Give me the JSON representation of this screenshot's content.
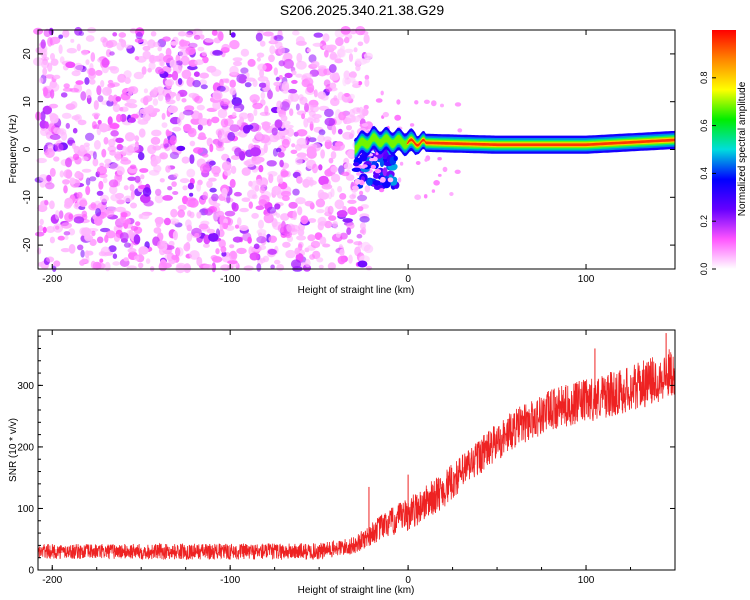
{
  "figure_title": "S206.2025.340.21.38.G29",
  "chart_data": [
    {
      "type": "heatmap",
      "title": "S206.2025.340.21.38.G29",
      "xlabel": "Height of straight line (km)",
      "ylabel": "Frequency (Hz)",
      "xlim": [
        -208,
        150
      ],
      "ylim": [
        -25,
        25
      ],
      "xticks": [
        -200,
        -100,
        0,
        100
      ],
      "yticks": [
        -20,
        -10,
        0,
        10,
        20
      ],
      "xticks_text": [
        "-200",
        "-100",
        "0",
        "100"
      ],
      "yticks_text": [
        "-20",
        "-10",
        "0",
        "10",
        "20"
      ],
      "noise_region": {
        "x_range": [
          -208,
          -30
        ],
        "freq_range": [
          -25,
          25
        ],
        "amplitude_range": [
          0.05,
          0.25
        ]
      },
      "transition_region": {
        "x_range": [
          -30,
          0
        ],
        "freq_range": [
          -8,
          2
        ],
        "amplitude_range": [
          0.2,
          0.5
        ]
      },
      "signal_band": {
        "x_range": [
          0,
          150
        ],
        "center_freq": [
          {
            "x": -30,
            "y": 0.5
          },
          {
            "x": -20,
            "y": 2
          },
          {
            "x": 0,
            "y": 1.5
          },
          {
            "x": 50,
            "y": 1
          },
          {
            "x": 100,
            "y": 1
          },
          {
            "x": 150,
            "y": 2
          }
        ],
        "peak_amplitude": 0.95
      },
      "colorbar": {
        "label": "Normalized spectral amplitude",
        "range": [
          0,
          1
        ],
        "ticks": [
          0.0,
          0.2,
          0.4,
          0.6,
          0.8
        ],
        "ticks_text": [
          "0.0",
          "0.2",
          "0.4",
          "0.6",
          "0.8"
        ],
        "colors": [
          "#ffffff",
          "#ff55ff",
          "#6600ff",
          "#0000ff",
          "#00dddd",
          "#00ee00",
          "#ffff00",
          "#ff8800",
          "#ff0000"
        ]
      }
    },
    {
      "type": "line",
      "xlabel": "Height of straight line (km)",
      "ylabel": "SNR (10 * v/v)",
      "xlim": [
        -208,
        150
      ],
      "ylim": [
        0,
        390
      ],
      "xticks": [
        -200,
        -100,
        0,
        100
      ],
      "yticks": [
        0,
        100,
        200,
        300
      ],
      "xticks_text": [
        "-200",
        "-100",
        "0",
        "100"
      ],
      "yticks_text": [
        "0",
        "100",
        "200",
        "300"
      ],
      "series": [
        {
          "name": "SNR",
          "color": "#ee2222",
          "trend": [
            {
              "x": -208,
              "y": 30
            },
            {
              "x": -50,
              "y": 30
            },
            {
              "x": -30,
              "y": 40
            },
            {
              "x": -15,
              "y": 70
            },
            {
              "x": 0,
              "y": 90
            },
            {
              "x": 20,
              "y": 130
            },
            {
              "x": 40,
              "y": 185
            },
            {
              "x": 60,
              "y": 230
            },
            {
              "x": 80,
              "y": 260
            },
            {
              "x": 100,
              "y": 275
            },
            {
              "x": 120,
              "y": 290
            },
            {
              "x": 140,
              "y": 310
            },
            {
              "x": 150,
              "y": 325
            }
          ],
          "noise_amplitude": [
            {
              "x": -208,
              "y": 12
            },
            {
              "x": -30,
              "y": 14
            },
            {
              "x": 0,
              "y": 28
            },
            {
              "x": 60,
              "y": 32
            },
            {
              "x": 150,
              "y": 40
            }
          ],
          "spikes": [
            {
              "x": -22,
              "y": 135
            },
            {
              "x": 0,
              "y": 155
            },
            {
              "x": 105,
              "y": 360
            },
            {
              "x": 145,
              "y": 385
            }
          ]
        }
      ]
    }
  ]
}
